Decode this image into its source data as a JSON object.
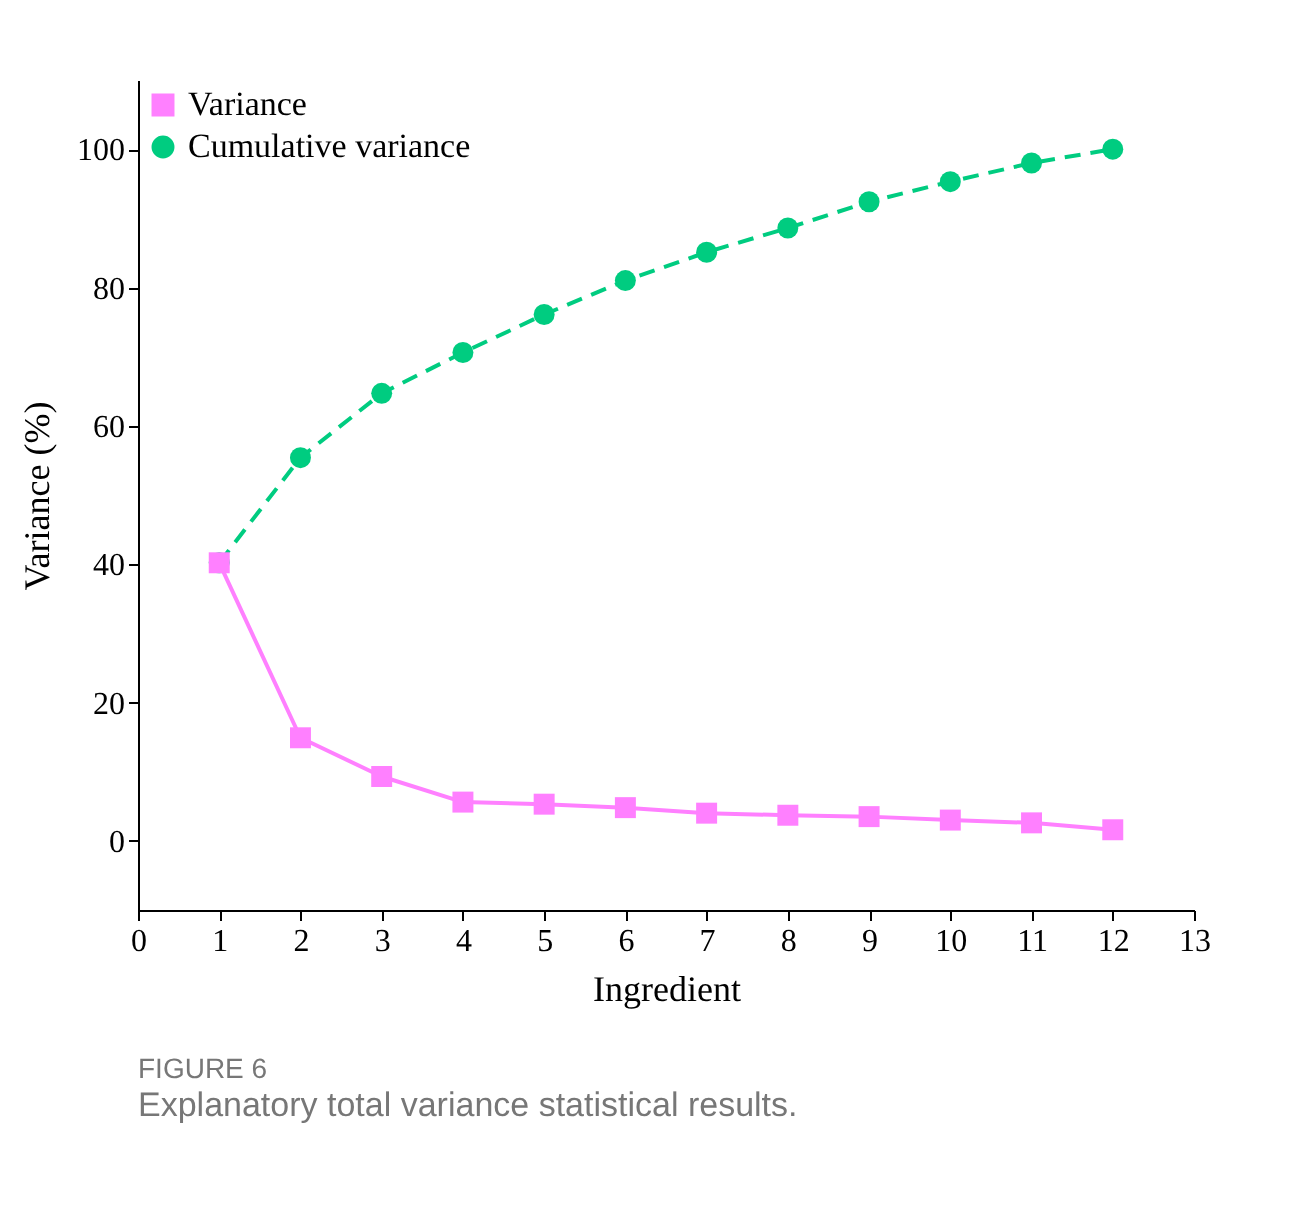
{
  "chart_data": {
    "type": "line",
    "xlabel": "Ingredient",
    "ylabel": "Variance (%)",
    "x": [
      1,
      2,
      3,
      4,
      5,
      6,
      7,
      8,
      9,
      10,
      11,
      12
    ],
    "series": [
      {
        "name": "Variance",
        "color": "#ff80ff",
        "marker": "square",
        "line_style": "solid",
        "values": [
          40.2,
          14.9,
          9.3,
          5.6,
          5.3,
          4.8,
          4.0,
          3.7,
          3.5,
          3.0,
          2.6,
          1.6
        ]
      },
      {
        "name": "Cumulative variance",
        "color": "#00cc80",
        "marker": "circle",
        "line_style": "dashed",
        "values": [
          40.2,
          55.4,
          64.7,
          70.6,
          76.1,
          81.0,
          85.1,
          88.6,
          92.4,
          95.3,
          98.0,
          100
        ]
      }
    ],
    "xlim": [
      0,
      13
    ],
    "xticks": [
      0,
      1,
      2,
      3,
      4,
      5,
      6,
      7,
      8,
      9,
      10,
      11,
      12,
      13
    ],
    "ylim": [
      -10,
      110
    ],
    "yticks": [
      0,
      20,
      40,
      60,
      80,
      100
    ],
    "grid": false,
    "legend": "top left",
    "annotations": [
      "FIGURE 6",
      "Explanatory total variance statistical results."
    ]
  }
}
